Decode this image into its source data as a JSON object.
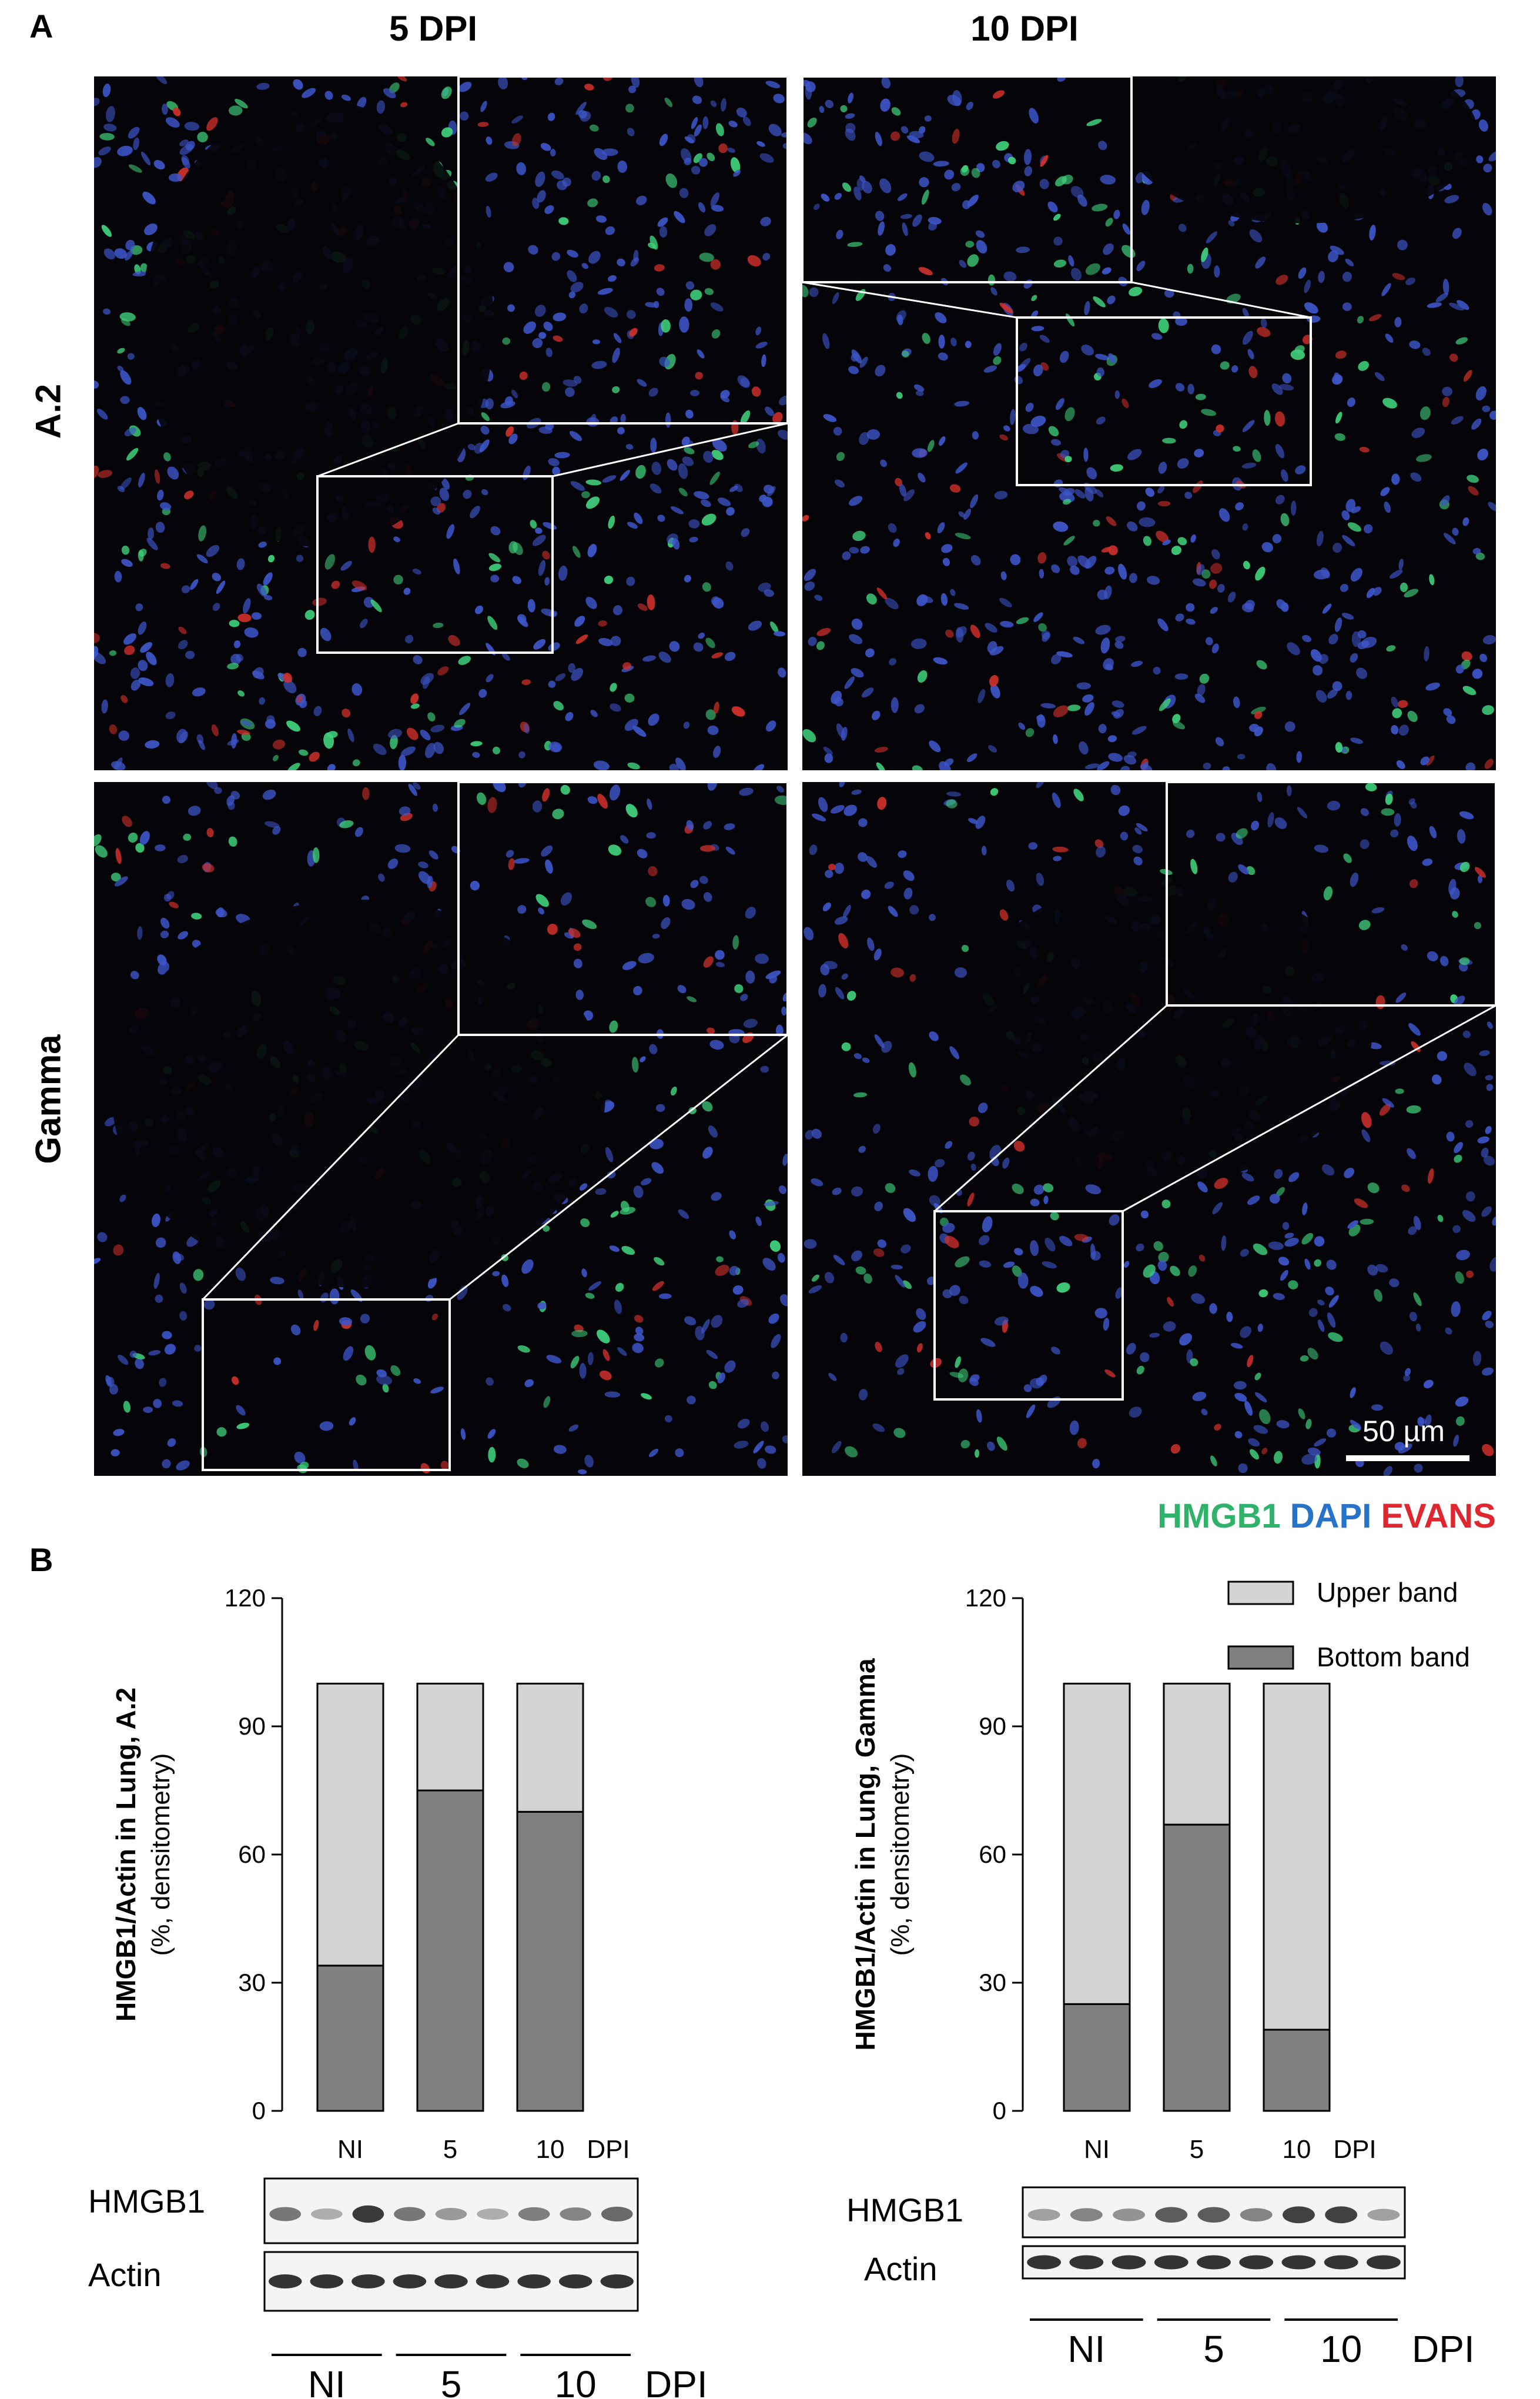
{
  "figure": {
    "panel_a_label": "A",
    "panel_b_label": "B",
    "columns": [
      "5 DPI",
      "10 DPI"
    ],
    "rows": [
      "A.2",
      "Gamma"
    ],
    "scale_bar": "50 µm",
    "stains": [
      {
        "label": "HMGB1",
        "color": "#2fb36b"
      },
      {
        "label": "DAPI",
        "color": "#2673c9"
      },
      {
        "label": "EVANS",
        "color": "#e0262f"
      }
    ],
    "micro_colors": {
      "background": "#050409",
      "nuclei": "#3d55c8",
      "green": "#3fd07a",
      "red": "#d0302a"
    }
  },
  "chart_data": [
    {
      "type": "bar",
      "stacked": true,
      "ylabel_bold": "HMGB1/Actin in Lung, A.2",
      "ylabel": "(%, densitometry)",
      "categories": [
        "NI",
        "5",
        "10"
      ],
      "x_unit": "DPI",
      "ylim": [
        0,
        120
      ],
      "yticks": [
        0,
        30,
        60,
        90,
        120
      ],
      "series": [
        {
          "name": "Bottom band",
          "values": [
            34,
            75,
            70
          ],
          "color": "#808080"
        },
        {
          "name": "Upper band",
          "values": [
            66,
            25,
            30
          ],
          "color": "#d3d3d3"
        }
      ],
      "blot_labels": [
        "HMGB1",
        "Actin"
      ],
      "blot_groups": [
        "NI",
        "5",
        "10"
      ],
      "blot_unit": "DPI"
    },
    {
      "type": "bar",
      "stacked": true,
      "ylabel_bold": "HMGB1/Actin in Lung, Gamma",
      "ylabel": "(%, densitometry)",
      "categories": [
        "NI",
        "5",
        "10"
      ],
      "x_unit": "DPI",
      "ylim": [
        0,
        120
      ],
      "yticks": [
        0,
        30,
        60,
        90,
        120
      ],
      "legend": "top-right",
      "series": [
        {
          "name": "Bottom band",
          "values": [
            25,
            67,
            19
          ],
          "color": "#808080"
        },
        {
          "name": "Upper band",
          "values": [
            75,
            33,
            81
          ],
          "color": "#d3d3d3"
        }
      ],
      "blot_labels": [
        "HMGB1",
        "Actin"
      ],
      "blot_groups": [
        "NI",
        "5",
        "10"
      ],
      "blot_unit": "DPI"
    }
  ]
}
